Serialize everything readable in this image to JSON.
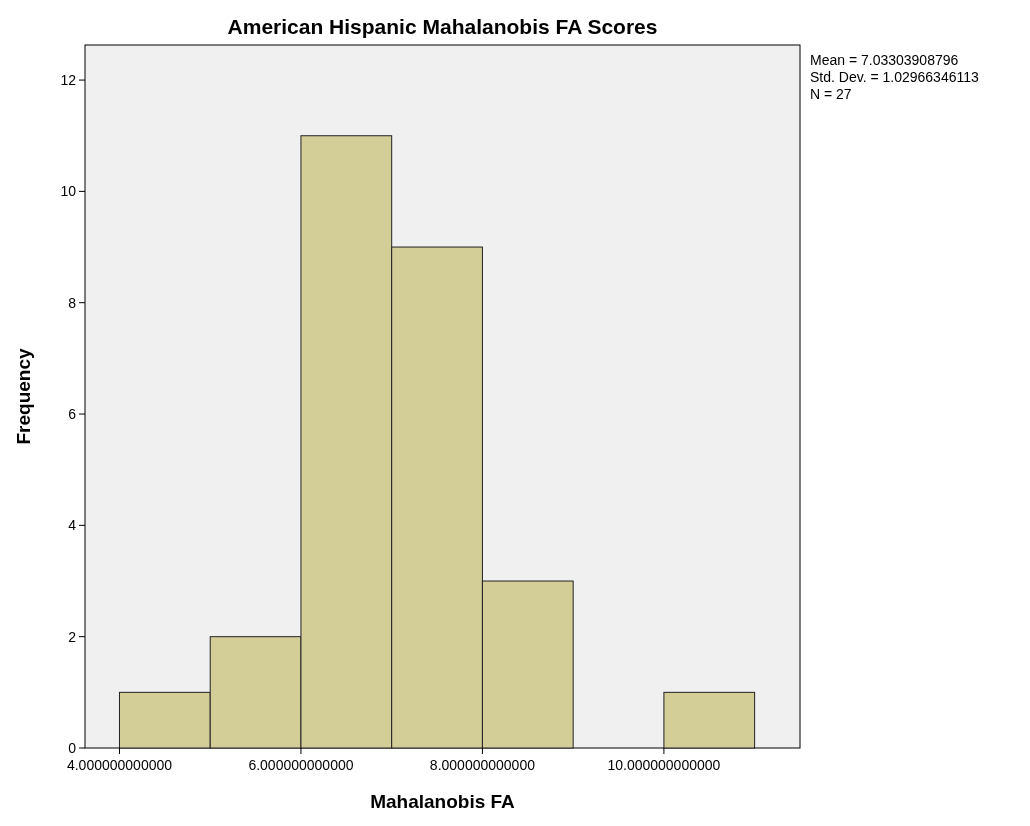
{
  "chart_data": {
    "type": "histogram",
    "title": "American Hispanic Mahalanobis FA Scores",
    "xlabel": "Mahalanobis FA",
    "ylabel": "Frequency",
    "bins": [
      4,
      5,
      6,
      7,
      8,
      9,
      10,
      11
    ],
    "values": [
      1,
      2,
      11,
      9,
      3,
      0,
      1
    ],
    "color": "#d3ce97",
    "xlim": [
      3.62,
      11.5
    ],
    "xticks": [
      {
        "value": 4,
        "label": "4.000000000000"
      },
      {
        "value": 6,
        "label": "6.000000000000"
      },
      {
        "value": 8,
        "label": "8.000000000000"
      },
      {
        "value": 10,
        "label": "10.000000000000"
      }
    ],
    "ylim": [
      0,
      12.63
    ],
    "yticks": [
      0,
      2,
      4,
      6,
      8,
      10,
      12
    ],
    "grid": false,
    "annotations": [
      "Mean = 7.03303908796",
      "Std. Dev. = 1.02966346113",
      "N = 27"
    ]
  }
}
